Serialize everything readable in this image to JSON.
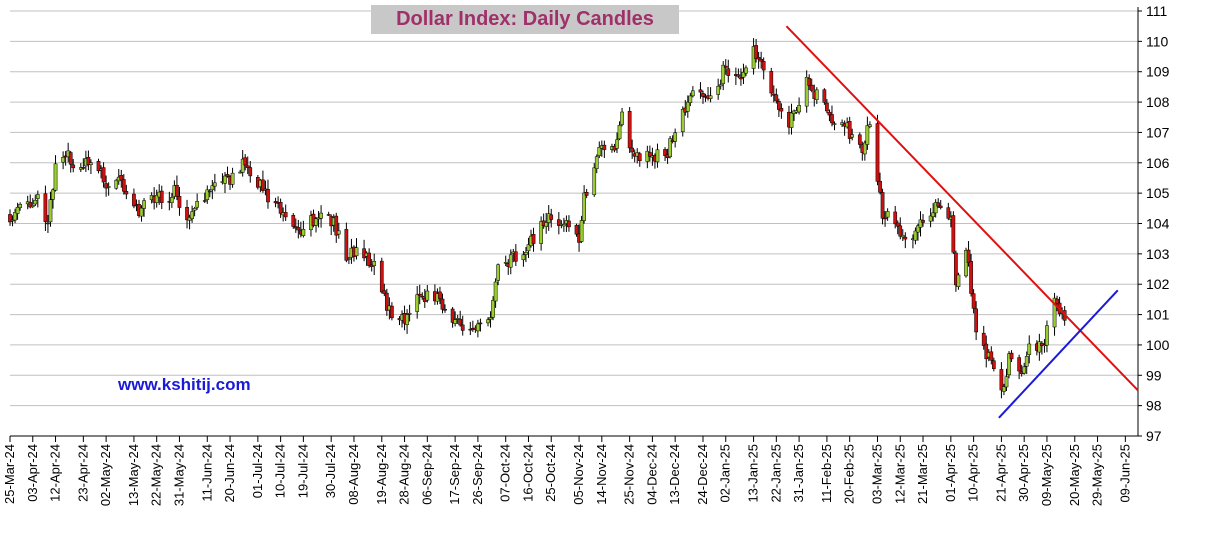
{
  "watermark": "www.kshitij.com",
  "colors": {
    "background": "#ffffff",
    "grid": "#c0c0c0",
    "bull_candle": "#9acd32",
    "bear_candle": "#cc1111",
    "wick": "#000000",
    "resistance_line": "#e01010",
    "support_line": "#1a1ad8",
    "title_text": "#a0306a",
    "title_box": "#c8c8c8"
  },
  "chart_data": {
    "type": "candlestick",
    "title": "Dollar Index: Daily Candles",
    "ylim": [
      97,
      111
    ],
    "y_axis_position": "right",
    "grid": "horizontal",
    "yticks": [
      97,
      98,
      99,
      100,
      101,
      102,
      103,
      104,
      105,
      106,
      107,
      108,
      109,
      110,
      111
    ],
    "xlim": [
      "2024-03-25",
      "2025-06-14"
    ],
    "x_tick_labels": [
      "25-Mar-24",
      "03-Apr-24",
      "12-Apr-24",
      "23-Apr-24",
      "02-May-24",
      "13-May-24",
      "22-May-24",
      "31-May-24",
      "11-Jun-24",
      "20-Jun-24",
      "01-Jul-24",
      "10-Jul-24",
      "19-Jul-24",
      "30-Jul-24",
      "08-Aug-24",
      "19-Aug-24",
      "28-Aug-24",
      "06-Sep-24",
      "17-Sep-24",
      "26-Sep-24",
      "07-Oct-24",
      "16-Oct-24",
      "25-Oct-24",
      "05-Nov-24",
      "14-Nov-24",
      "25-Nov-24",
      "04-Dec-24",
      "13-Dec-24",
      "24-Dec-24",
      "02-Jan-25",
      "13-Jan-25",
      "22-Jan-25",
      "31-Jan-25",
      "11-Feb-25",
      "20-Feb-25",
      "03-Mar-25",
      "12-Mar-25",
      "21-Mar-25",
      "01-Apr-25",
      "10-Apr-25",
      "21-Apr-25",
      "30-Apr-25",
      "09-May-25",
      "20-May-25",
      "29-May-25",
      "09-Jun-25"
    ],
    "price_path": [
      [
        "2024-03-25",
        104.3
      ],
      [
        "2024-04-01",
        104.6
      ],
      [
        "2024-04-05",
        104.9
      ],
      [
        "2024-04-09",
        104.1
      ],
      [
        "2024-04-12",
        105.8
      ],
      [
        "2024-04-16",
        106.2
      ],
      [
        "2024-04-23",
        105.8
      ],
      [
        "2024-04-26",
        106.1
      ],
      [
        "2024-05-02",
        105.3
      ],
      [
        "2024-05-07",
        105.5
      ],
      [
        "2024-05-15",
        104.4
      ],
      [
        "2024-05-22",
        104.9
      ],
      [
        "2024-05-29",
        105.0
      ],
      [
        "2024-06-04",
        104.2
      ],
      [
        "2024-06-11",
        105.0
      ],
      [
        "2024-06-17",
        105.3
      ],
      [
        "2024-06-26",
        106.0
      ],
      [
        "2024-07-05",
        104.9
      ],
      [
        "2024-07-12",
        104.1
      ],
      [
        "2024-07-17",
        103.8
      ],
      [
        "2024-07-25",
        104.3
      ],
      [
        "2024-07-31",
        104.1
      ],
      [
        "2024-08-05",
        102.9
      ],
      [
        "2024-08-09",
        103.1
      ],
      [
        "2024-08-16",
        102.7
      ],
      [
        "2024-08-21",
        101.3
      ],
      [
        "2024-08-27",
        100.8
      ],
      [
        "2024-09-03",
        101.7
      ],
      [
        "2024-09-09",
        101.6
      ],
      [
        "2024-09-17",
        100.8
      ],
      [
        "2024-09-24",
        100.4
      ],
      [
        "2024-09-30",
        100.7
      ],
      [
        "2024-10-04",
        102.4
      ],
      [
        "2024-10-10",
        102.9
      ],
      [
        "2024-10-18",
        103.5
      ],
      [
        "2024-10-25",
        104.3
      ],
      [
        "2024-10-31",
        103.9
      ],
      [
        "2024-11-05",
        103.5
      ],
      [
        "2024-11-07",
        104.9
      ],
      [
        "2024-11-14",
        106.6
      ],
      [
        "2024-11-19",
        106.3
      ],
      [
        "2024-11-22",
        107.5
      ],
      [
        "2024-11-27",
        106.2
      ],
      [
        "2024-12-04",
        106.3
      ],
      [
        "2024-12-09",
        106.2
      ],
      [
        "2024-12-13",
        107.0
      ],
      [
        "2024-12-19",
        108.3
      ],
      [
        "2024-12-27",
        108.0
      ],
      [
        "2025-01-02",
        109.2
      ],
      [
        "2025-01-07",
        108.6
      ],
      [
        "2025-01-13",
        109.8
      ],
      [
        "2025-01-15",
        109.3
      ],
      [
        "2025-01-20",
        108.3
      ],
      [
        "2025-01-27",
        107.4
      ],
      [
        "2025-02-03",
        108.6
      ],
      [
        "2025-02-07",
        108.2
      ],
      [
        "2025-02-13",
        107.3
      ],
      [
        "2025-02-19",
        107.1
      ],
      [
        "2025-02-25",
        106.5
      ],
      [
        "2025-02-28",
        107.4
      ],
      [
        "2025-03-05",
        104.4
      ],
      [
        "2025-03-11",
        103.8
      ],
      [
        "2025-03-14",
        103.6
      ],
      [
        "2025-03-20",
        103.9
      ],
      [
        "2025-03-26",
        104.6
      ],
      [
        "2025-04-01",
        104.2
      ],
      [
        "2025-04-03",
        102.1
      ],
      [
        "2025-04-07",
        103.2
      ],
      [
        "2025-04-11",
        100.3
      ],
      [
        "2025-04-16",
        99.6
      ],
      [
        "2025-04-21",
        98.3
      ],
      [
        "2025-04-24",
        99.5
      ],
      [
        "2025-04-29",
        99.2
      ],
      [
        "2025-05-02",
        100.1
      ],
      [
        "2025-05-07",
        99.8
      ],
      [
        "2025-05-12",
        101.6
      ],
      [
        "2025-05-16",
        100.9
      ]
    ],
    "trendlines": [
      {
        "kind": "resistance",
        "start": [
          "2025-01-26",
          110.5
        ],
        "end": [
          "2025-06-14",
          98.5
        ]
      },
      {
        "kind": "support",
        "start": [
          "2025-04-20",
          97.6
        ],
        "end": [
          "2025-06-06",
          101.8
        ]
      }
    ]
  }
}
